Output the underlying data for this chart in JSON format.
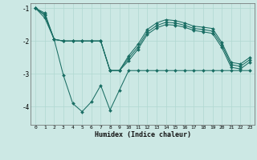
{
  "xlabel": "Humidex (Indice chaleur)",
  "bg_color": "#cce8e4",
  "line_color": "#1a6e64",
  "grid_color": "#b0d8d0",
  "xlim": [
    -0.5,
    23.5
  ],
  "ylim": [
    -4.55,
    -0.85
  ],
  "yticks": [
    -4,
    -3,
    -2,
    -1
  ],
  "xticks": [
    0,
    1,
    2,
    3,
    4,
    5,
    6,
    7,
    8,
    9,
    10,
    11,
    12,
    13,
    14,
    15,
    16,
    17,
    18,
    19,
    20,
    21,
    22,
    23
  ],
  "series": [
    {
      "x": [
        0,
        1,
        2,
        3,
        4,
        5,
        6,
        7,
        8,
        9,
        10,
        11,
        12,
        13,
        14,
        15,
        16,
        17,
        18,
        19,
        20,
        21,
        22,
        23
      ],
      "y": [
        -1.0,
        -1.2,
        -1.95,
        -3.05,
        -3.9,
        -4.15,
        -3.85,
        -3.35,
        -4.1,
        -3.5,
        -2.9,
        -2.9,
        -2.9,
        -2.9,
        -2.9,
        -2.9,
        -2.9,
        -2.9,
        -2.9,
        -2.9,
        -2.9,
        -2.9,
        -2.9,
        -2.9
      ]
    },
    {
      "x": [
        0,
        1,
        2,
        3,
        4,
        5,
        6,
        7,
        8,
        9,
        10,
        11,
        12,
        13,
        14,
        15,
        16,
        17,
        18,
        19,
        20,
        21,
        22,
        23
      ],
      "y": [
        -1.0,
        -1.15,
        -1.95,
        -2.0,
        -2.0,
        -2.0,
        -2.0,
        -2.0,
        -2.9,
        -2.9,
        -2.45,
        -2.1,
        -1.65,
        -1.45,
        -1.35,
        -1.38,
        -1.45,
        -1.55,
        -1.58,
        -1.62,
        -2.05,
        -2.65,
        -2.7,
        -2.5
      ]
    },
    {
      "x": [
        0,
        1,
        2,
        3,
        4,
        5,
        6,
        7,
        8,
        9,
        10,
        11,
        12,
        13,
        14,
        15,
        16,
        17,
        18,
        19,
        20,
        21,
        22,
        23
      ],
      "y": [
        -1.0,
        -1.22,
        -1.95,
        -2.0,
        -2.0,
        -2.0,
        -2.0,
        -2.0,
        -2.9,
        -2.9,
        -2.52,
        -2.18,
        -1.73,
        -1.53,
        -1.43,
        -1.45,
        -1.52,
        -1.62,
        -1.65,
        -1.7,
        -2.12,
        -2.72,
        -2.77,
        -2.57
      ]
    },
    {
      "x": [
        0,
        1,
        2,
        3,
        4,
        5,
        6,
        7,
        8,
        9,
        10,
        11,
        12,
        13,
        14,
        15,
        16,
        17,
        18,
        19,
        20,
        21,
        22,
        23
      ],
      "y": [
        -1.0,
        -1.3,
        -1.95,
        -2.0,
        -2.0,
        -2.0,
        -2.0,
        -2.0,
        -2.9,
        -2.9,
        -2.6,
        -2.25,
        -1.8,
        -1.6,
        -1.5,
        -1.52,
        -1.58,
        -1.68,
        -1.72,
        -1.77,
        -2.2,
        -2.8,
        -2.85,
        -2.64
      ]
    }
  ]
}
